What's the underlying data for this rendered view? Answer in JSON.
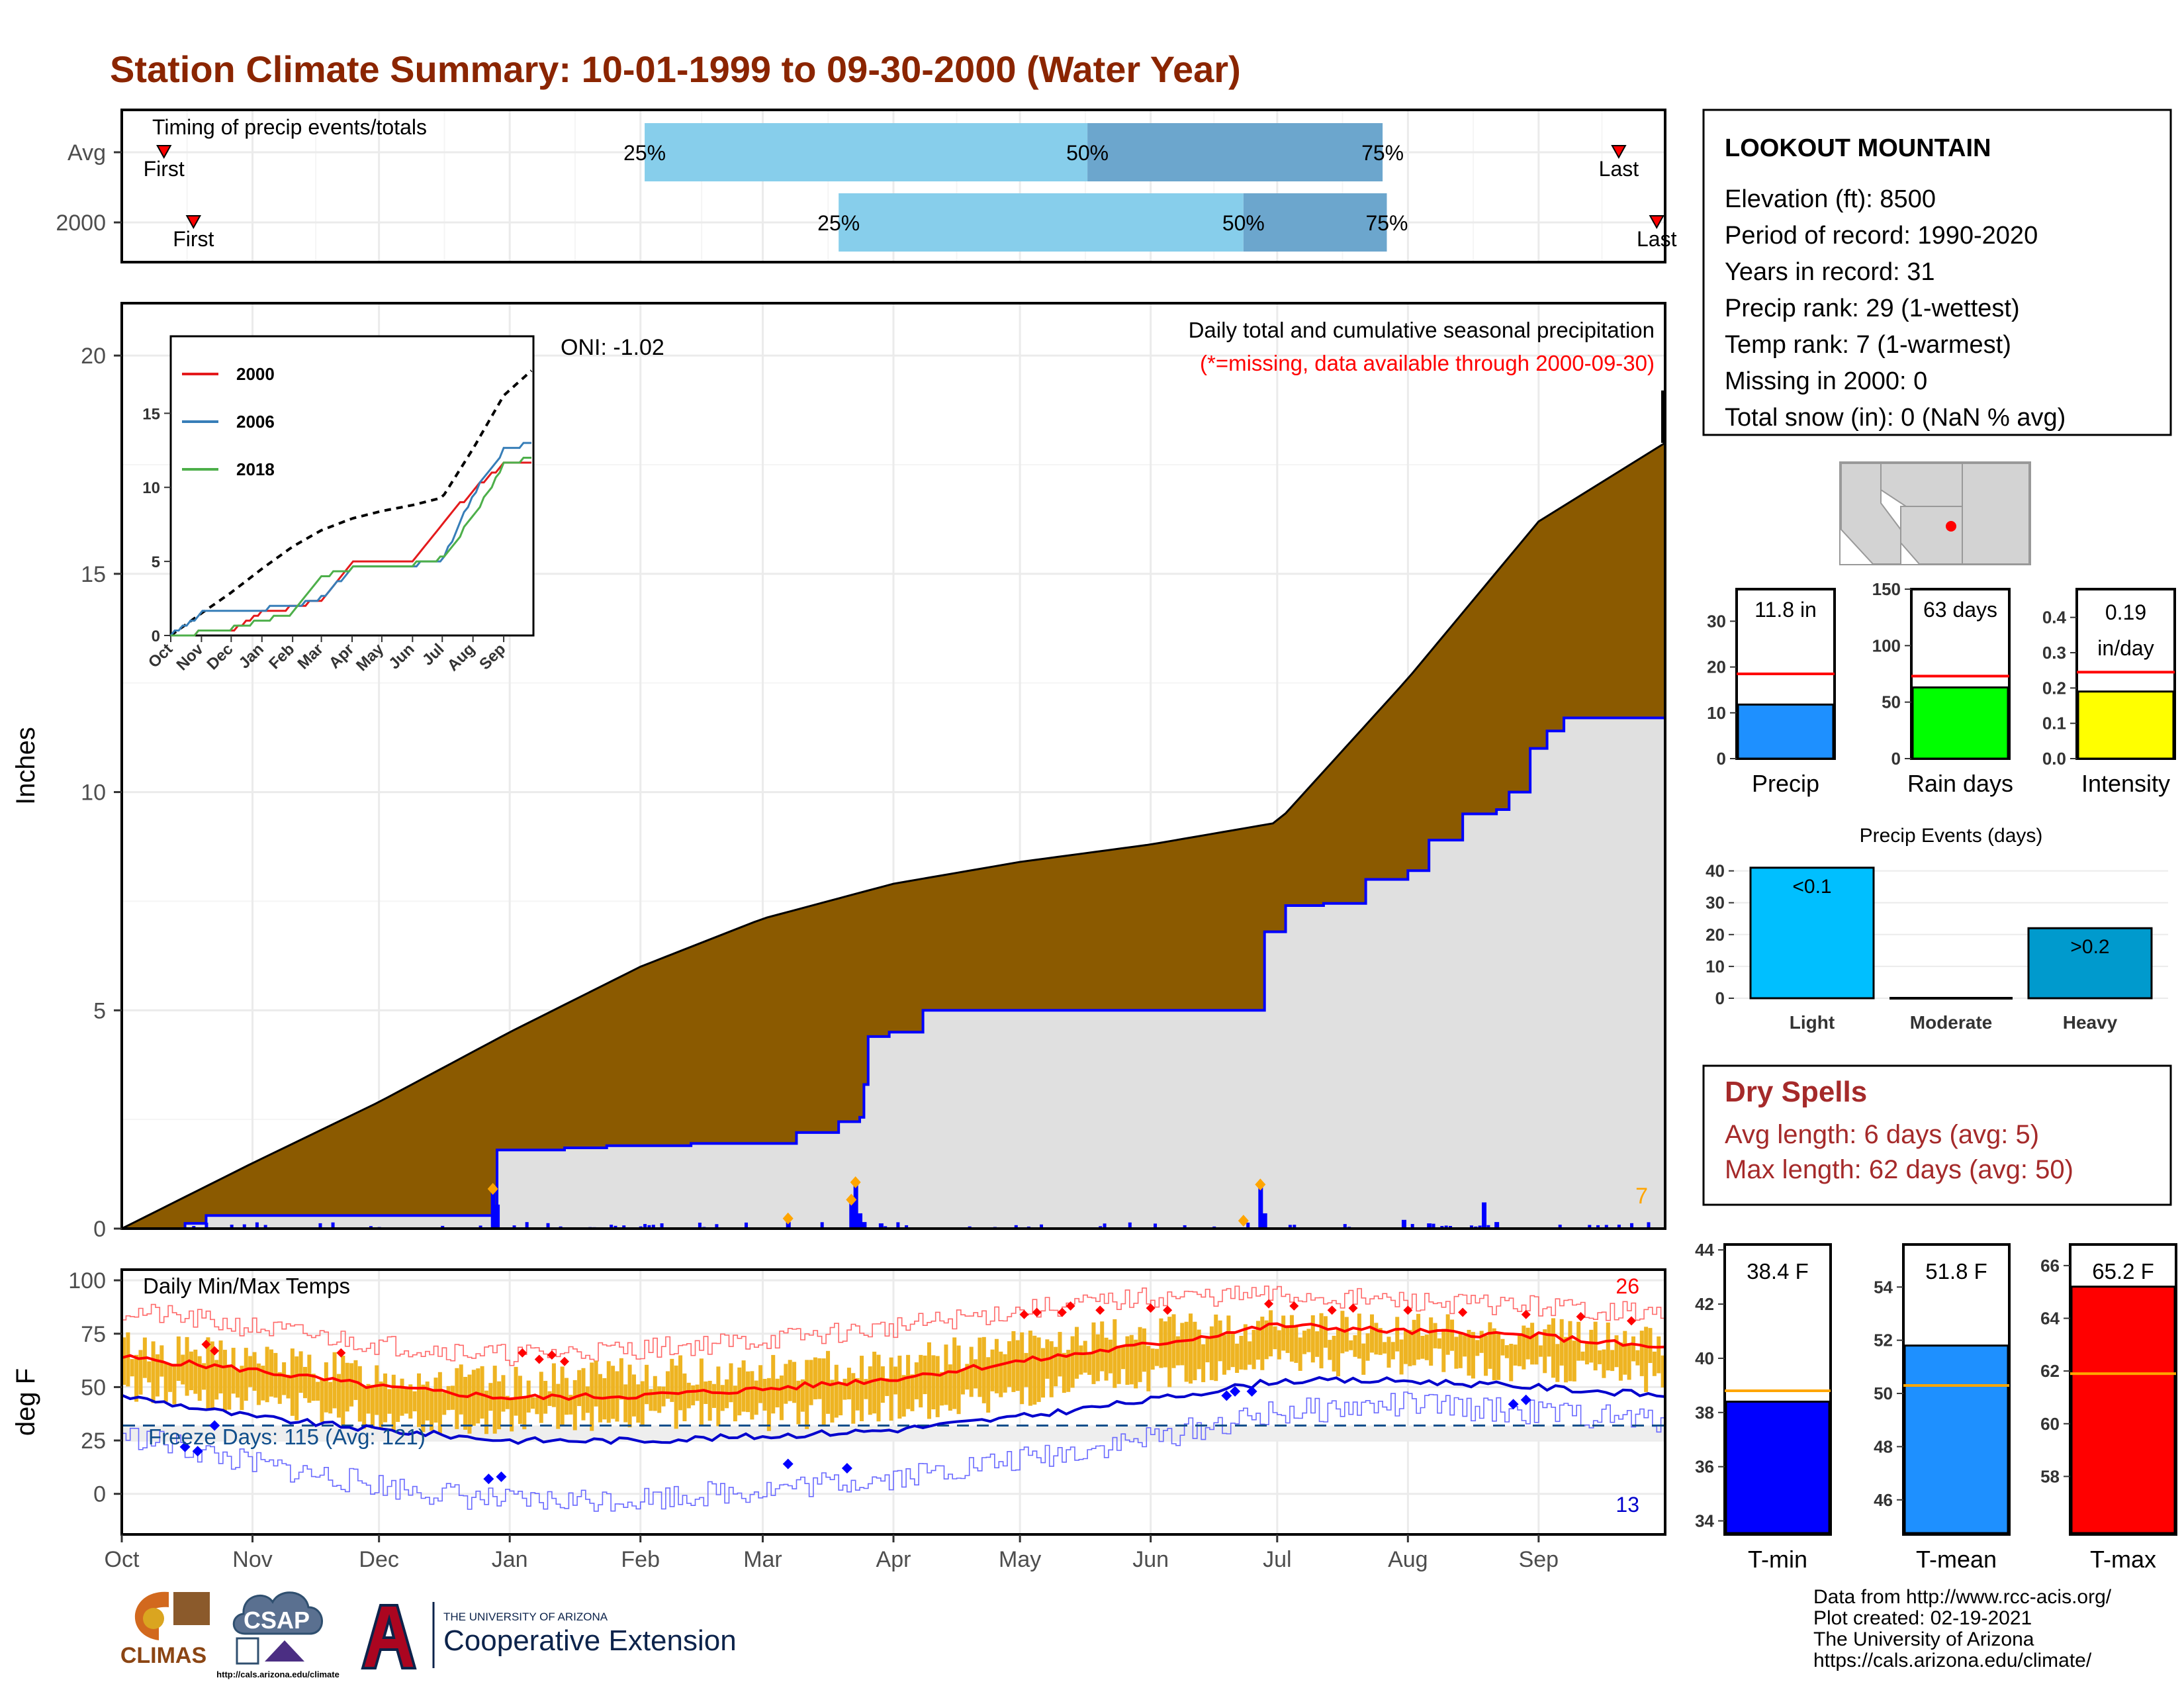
{
  "title": "Station Climate Summary: 10-01-1999 to 09-30-2000 (Water Year)",
  "colors": {
    "title": "#8b2500",
    "precip_fill": "#8b5a00",
    "current_fill": "#e0e0e0",
    "current_line": "#0000ff",
    "quartile_light": "#87ceeb",
    "quartile_dark": "#6ca6cd",
    "marker": "#ff0000",
    "temp_bar": "#eeb422",
    "tmax_line": "#ff0000",
    "tmin_line": "#0000cd",
    "dry_spells": "#a52a2a"
  },
  "timing": {
    "label": "Timing of precip events/totals",
    "rows": [
      {
        "label": "Avg",
        "first_label": "First",
        "last_label": "Last",
        "first_day": 10,
        "last_day": 355,
        "q25_label": "25%",
        "q50_label": "50%",
        "q75_label": "75%",
        "q25": 124,
        "q50": 229,
        "q75": 299
      },
      {
        "label": "2000",
        "first_label": "First",
        "last_label": "Last",
        "first_day": 17,
        "last_day": 364,
        "q25_label": "25%",
        "q50_label": "50%",
        "q75_label": "75%",
        "q25": 170,
        "q50": 266,
        "q75": 300
      }
    ]
  },
  "precip_panel": {
    "ylabel": "Inches",
    "yticks": [
      "0",
      "5",
      "10",
      "15",
      "20"
    ],
    "title_line": "Daily total and cumulative seasonal precipitation",
    "subtitle_line": "(*=missing, data available through 2000-09-30)",
    "oni": "ONI: -1.02",
    "count_label": "7"
  },
  "inset": {
    "yticks": [
      "0",
      "5",
      "10",
      "15"
    ],
    "xticks": [
      "Oct",
      "Nov",
      "Dec",
      "Jan",
      "Feb",
      "Mar",
      "Apr",
      "May",
      "Jun",
      "Jul",
      "Aug",
      "Sep"
    ],
    "legend": [
      {
        "name": "2000",
        "color": "#e41a1c"
      },
      {
        "name": "2006",
        "color": "#377eb8"
      },
      {
        "name": "2018",
        "color": "#4daf4a"
      }
    ]
  },
  "temp_panel": {
    "ylabel": "deg F",
    "yticks": [
      "0",
      "25",
      "50",
      "75",
      "100"
    ],
    "title": "Daily Min/Max Temps",
    "freeze_label": "Freeze Days: 115 (Avg: 121)",
    "max_count": "26",
    "min_count": "13"
  },
  "months": [
    "Oct",
    "Nov",
    "Dec",
    "Jan",
    "Feb",
    "Mar",
    "Apr",
    "May",
    "Jun",
    "Jul",
    "Aug",
    "Sep"
  ],
  "station": {
    "name": "LOOKOUT MOUNTAIN",
    "lines": [
      "Elevation (ft): 8500",
      "Period of record: 1990-2020",
      "Years in record: 31",
      "Precip rank: 29 (1-wettest)",
      "Temp rank: 7 (1-warmest)",
      "Missing in 2000: 0",
      "Total snow (in): 0 (NaN % avg)"
    ]
  },
  "summary_bars": [
    {
      "label": "Precip",
      "value_label": "11.8 in",
      "value": 11.8,
      "avg": 18.5,
      "yticks": [
        "0",
        "10",
        "20",
        "30"
      ],
      "ymax": 37,
      "color": "#1e90ff"
    },
    {
      "label": "Rain days",
      "value_label": "63 days",
      "value": 63,
      "avg": 73,
      "yticks": [
        "0",
        "50",
        "100",
        "150"
      ],
      "ymax": 150,
      "color": "#00ff00"
    },
    {
      "label": "Intensity",
      "value_label": "0.19 in/day",
      "value": 0.19,
      "avg": 0.245,
      "yticks": [
        "0.0",
        "0.1",
        "0.2",
        "0.3",
        "0.4"
      ],
      "ymax": 0.48,
      "color": "#ffff00"
    }
  ],
  "events": {
    "title": "Precip Events (days)",
    "yticks": [
      "0",
      "10",
      "20",
      "30",
      "40"
    ],
    "bars": [
      {
        "category": "Light",
        "label": "<0.1",
        "value": 41,
        "color": "#00bfff"
      },
      {
        "category": "Moderate",
        "label": "",
        "value": 0,
        "color": "#00bfff"
      },
      {
        "category": "Heavy",
        "label": ">0.2",
        "value": 22,
        "color": "#009acd"
      }
    ]
  },
  "dry_spells": {
    "title": "Dry Spells",
    "avg_line": "Avg length: 6 days (avg: 5)",
    "max_line": "Max length: 62 days (avg: 50)"
  },
  "temp_bars": [
    {
      "label": "T-min",
      "value_label": "38.4 F",
      "value": 38.4,
      "avg": 38.8,
      "ymin": 33.5,
      "ymax": 44.2,
      "yticks": [
        "34",
        "36",
        "38",
        "40",
        "42",
        "44"
      ],
      "color": "#0000ff"
    },
    {
      "label": "T-mean",
      "value_label": "51.8 F",
      "value": 51.8,
      "avg": 50.3,
      "ymin": 44.7,
      "ymax": 55.6,
      "yticks": [
        "46",
        "48",
        "50",
        "52",
        "54"
      ],
      "color": "#1e90ff"
    },
    {
      "label": "T-max",
      "value_label": "65.2 F",
      "value": 65.2,
      "avg": 61.9,
      "ymin": 55.8,
      "ymax": 66.8,
      "yticks": [
        "58",
        "60",
        "62",
        "64",
        "66"
      ],
      "color": "#ff0000"
    }
  ],
  "credits": [
    "Data from http://www.rcc-acis.org/",
    "Plot created: 02-19-2021",
    "The University of Arizona",
    "https://cals.arizona.edu/climate/"
  ],
  "logos": {
    "climas": "CLIMAS",
    "csap": "CSAP",
    "csap_url": "http://cals.arizona.edu/climate",
    "ua_small": "THE UNIVERSITY OF ARIZONA",
    "ua_big": "Cooperative Extension"
  },
  "chart_data": [
    {
      "type": "area",
      "title": "Daily total and cumulative seasonal precipitation",
      "ylabel": "Inches",
      "ylim": [
        0,
        21
      ],
      "x": [
        "Oct",
        "Nov",
        "Dec",
        "Jan",
        "Feb",
        "Mar",
        "Apr",
        "May",
        "Jun",
        "Jul",
        "Aug",
        "Sep",
        "end"
      ],
      "series": [
        {
          "values": [
            0.0,
            1.5,
            2.9,
            4.5,
            6.0,
            7.1,
            7.9,
            8.4,
            8.8,
            9.3,
            12.6,
            16.2,
            18.0
          ]
        },
        {
          "name": "2000",
          "values": [
            0.0,
            0.3,
            0.35,
            1.8,
            1.95,
            2.55,
            5.0,
            5.0,
            5.0,
            7.4,
            9.5,
            11.7,
            11.8
          ]
        }
      ],
      "daily_spikes": [
        {
          "date": "Dec 27",
          "value": 0.85
        },
        {
          "date": "Mar 7",
          "value": 0.15
        },
        {
          "date": "Mar 23",
          "value": 1.0
        },
        {
          "date": "Mar 24",
          "value": 0.6
        },
        {
          "date": "Jun 28",
          "value": 0.95
        },
        {
          "date": "Jul 30",
          "value": 0.2
        },
        {
          "date": "Aug 19",
          "value": 0.6
        }
      ]
    },
    {
      "type": "line",
      "title": "",
      "ylim": [
        0,
        20
      ],
      "x": [
        "Oct",
        "Nov",
        "Dec",
        "Jan",
        "Feb",
        "Mar",
        "Apr",
        "May",
        "Jun",
        "Jul",
        "Aug",
        "Sep",
        "end"
      ],
      "series": [
        {
          "values": [
            0.0,
            1.5,
            2.9,
            4.5,
            6.0,
            7.1,
            7.9,
            8.4,
            8.8,
            9.3,
            12.6,
            16.2,
            18.0
          ]
        },
        {
          "name": "2000",
          "values": [
            0.0,
            0.2,
            0.3,
            1.6,
            1.9,
            2.4,
            5.0,
            5.0,
            5.0,
            7.5,
            9.8,
            11.5,
            11.8
          ]
        },
        {
          "name": "2006",
          "values": [
            0.0,
            1.5,
            1.6,
            1.8,
            2.0,
            2.5,
            4.5,
            4.7,
            4.8,
            5.0,
            9.5,
            12.5,
            13.0
          ]
        },
        {
          "name": "2018",
          "values": [
            0.0,
            0.2,
            0.5,
            1.0,
            1.5,
            4.0,
            4.5,
            4.7,
            4.8,
            5.2,
            8.0,
            11.5,
            12.0
          ]
        }
      ]
    },
    {
      "type": "line",
      "title": "Daily Min/Max Temps",
      "ylabel": "deg F",
      "ylim": [
        -15,
        100
      ],
      "x": [
        "Oct",
        "Nov",
        "Dec",
        "Jan",
        "Feb",
        "Mar",
        "Apr",
        "May",
        "Jun",
        "Jul",
        "Aug",
        "Sep",
        "end"
      ],
      "series": [
        {
          "name": "Avg max",
          "values": [
            64,
            58,
            50,
            45,
            46,
            49,
            54,
            62,
            70,
            79,
            76,
            74,
            68
          ]
        },
        {
          "name": "Avg min",
          "values": [
            46,
            36,
            30,
            25,
            25,
            27,
            30,
            36,
            44,
            53,
            53,
            50,
            46
          ]
        },
        {
          "name": "Record max",
          "values": [
            86,
            78,
            70,
            65,
            68,
            72,
            78,
            86,
            92,
            93,
            90,
            88,
            84
          ]
        },
        {
          "name": "Record min",
          "values": [
            28,
            14,
            4,
            -4,
            -2,
            2,
            8,
            16,
            26,
            38,
            42,
            38,
            34
          ]
        },
        {
          "name": "2000 max",
          "values": [
            68,
            62,
            54,
            50,
            55,
            56,
            60,
            68,
            74,
            78,
            76,
            74,
            70
          ]
        },
        {
          "name": "2000 min",
          "values": [
            40,
            34,
            26,
            24,
            28,
            26,
            30,
            36,
            44,
            52,
            52,
            48,
            44
          ]
        }
      ],
      "freeze_line": 32
    },
    {
      "type": "bar",
      "categories": [
        "Precip",
        "Rain days",
        "Intensity"
      ],
      "values": [
        11.8,
        63,
        0.19
      ]
    },
    {
      "type": "bar",
      "title": "Precip Events (days)",
      "categories": [
        "Light",
        "Moderate",
        "Heavy"
      ],
      "values": [
        41,
        0,
        22
      ],
      "ylim": [
        0,
        42
      ]
    },
    {
      "type": "bar",
      "categories": [
        "T-min",
        "T-mean",
        "T-max"
      ],
      "values": [
        38.4,
        51.8,
        65.2
      ]
    }
  ]
}
